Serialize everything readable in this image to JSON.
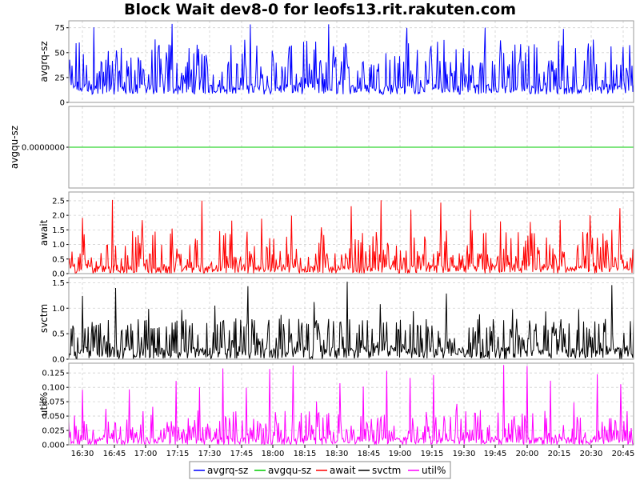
{
  "chart_data": {
    "type": "line",
    "title": "Block Wait dev8-0 for leofs13.rit.rakuten.com",
    "x_tick_labels": [
      "16:30",
      "16:45",
      "17:00",
      "17:15",
      "17:30",
      "17:45",
      "18:00",
      "18:15",
      "18:30",
      "18:45",
      "19:00",
      "19:15",
      "19:30",
      "19:45",
      "20:00",
      "20:15",
      "20:30",
      "20:45"
    ],
    "x_range_minutes": [
      16.25,
      16.833
    ],
    "grid": true,
    "legend_position": "bottom-center",
    "legend": [
      "avgrq-sz",
      "avgqu-sz",
      "await",
      "svctm",
      "util%"
    ],
    "panels": [
      {
        "name": "avgrq-sz",
        "ylabel": "avgrq-sz",
        "color": "#0000ff",
        "ylim": [
          0,
          82
        ],
        "yticks": [
          {
            "value": 0,
            "label": "0"
          },
          {
            "value": 25,
            "label": "25"
          },
          {
            "value": 50,
            "label": "50"
          },
          {
            "value": 75,
            "label": "75"
          }
        ],
        "baseline": 8,
        "typical_high": 35,
        "peak_value": 64,
        "max_value": 80
      },
      {
        "name": "avgqu-sz",
        "ylabel": "avgqu-sz",
        "color": "#00cc00",
        "ylim": [
          -1,
          1
        ],
        "yticks": [
          {
            "value": 0,
            "label": "0.0000000"
          }
        ],
        "baseline": 0,
        "typical_high": 0,
        "peak_value": 0,
        "max_value": 0
      },
      {
        "name": "await",
        "ylabel": "await",
        "color": "#ff0000",
        "ylim": [
          0,
          2.8
        ],
        "yticks": [
          {
            "value": 0,
            "label": "0.0"
          },
          {
            "value": 0.5,
            "label": "0.5"
          },
          {
            "value": 1.0,
            "label": "1.0"
          },
          {
            "value": 1.5,
            "label": "1.5"
          },
          {
            "value": 2.0,
            "label": "2.0"
          },
          {
            "value": 2.5,
            "label": "2.5"
          }
        ],
        "baseline": 0.0,
        "typical_high": 0.7,
        "peak_value": 1.5,
        "max_value": 2.67
      },
      {
        "name": "svctm",
        "ylabel": "svctm",
        "color": "#000000",
        "ylim": [
          0,
          1.6
        ],
        "yticks": [
          {
            "value": 0,
            "label": "0.0"
          },
          {
            "value": 0.5,
            "label": "0.5"
          },
          {
            "value": 1.0,
            "label": "1.0"
          },
          {
            "value": 1.5,
            "label": "1.5"
          }
        ],
        "baseline": 0.0,
        "typical_high": 0.6,
        "peak_value": 0.8,
        "max_value": 1.55
      },
      {
        "name": "util%",
        "ylabel": "util%",
        "color": "#ff00ff",
        "ylim": [
          0,
          0.142
        ],
        "yticks": [
          {
            "value": 0,
            "label": "0.000"
          },
          {
            "value": 0.025,
            "label": "0.025"
          },
          {
            "value": 0.05,
            "label": "0.050"
          },
          {
            "value": 0.075,
            "label": "0.075"
          },
          {
            "value": 0.1,
            "label": "0.100"
          },
          {
            "value": 0.125,
            "label": "0.125"
          }
        ],
        "baseline": 0.0,
        "typical_high": 0.033,
        "peak_value": 0.06,
        "max_value": 0.14
      }
    ]
  }
}
